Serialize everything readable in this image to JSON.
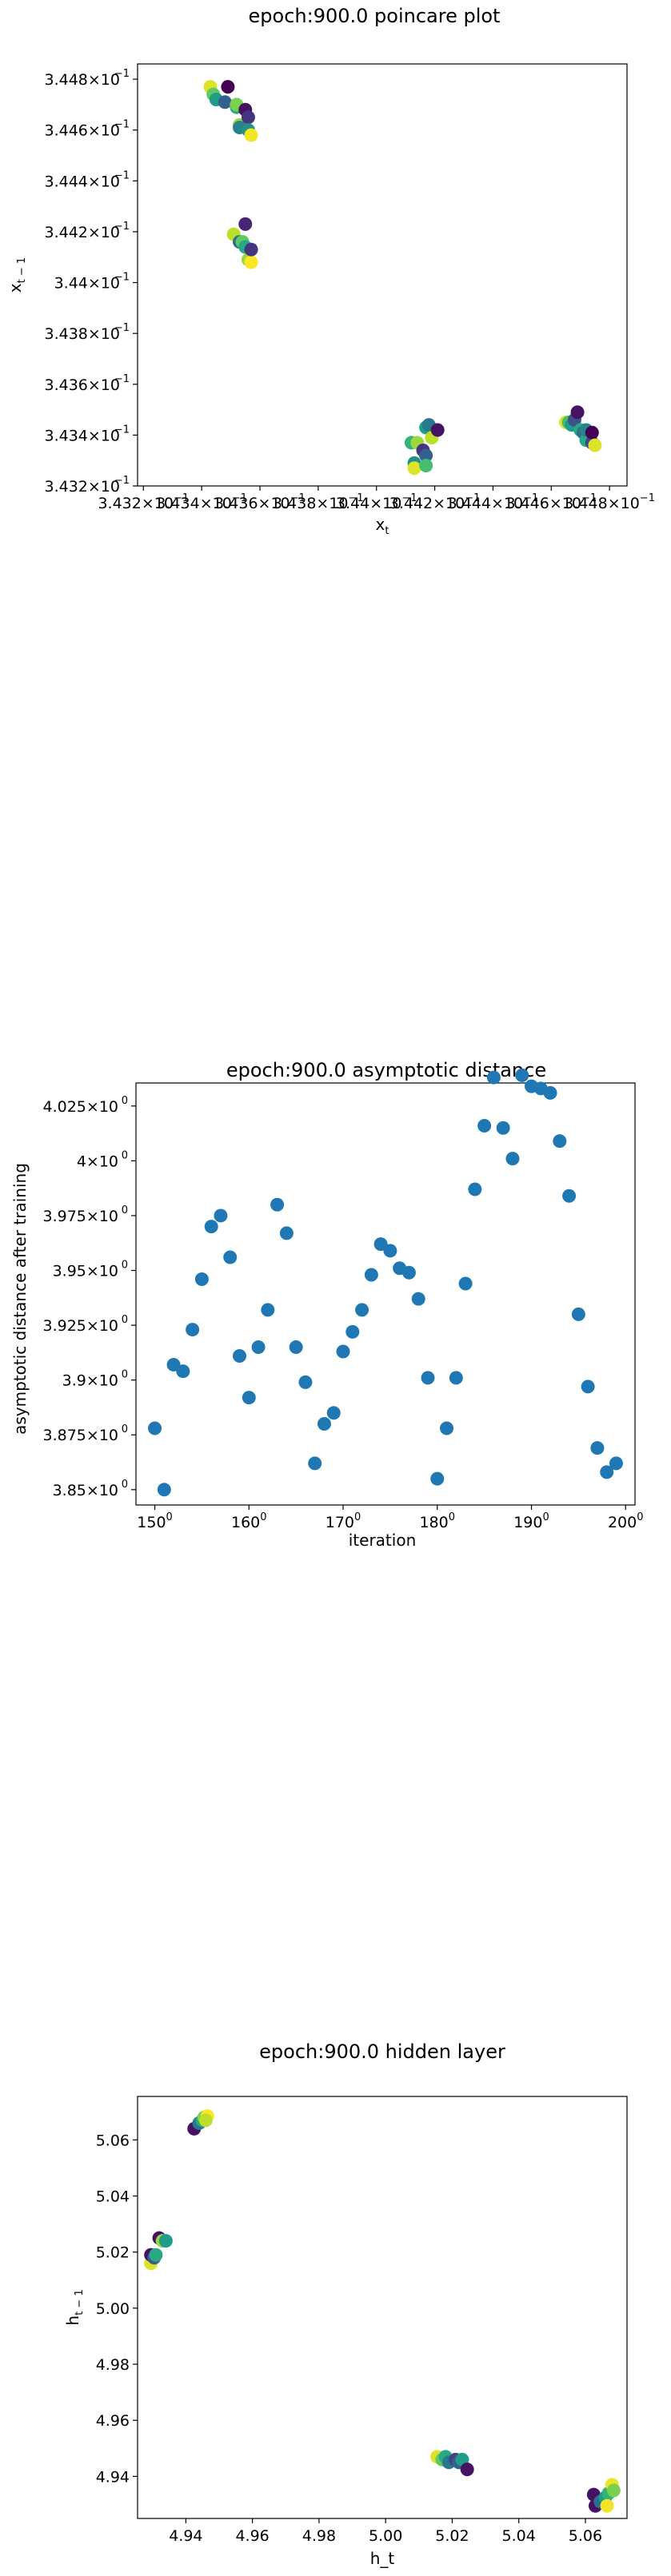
{
  "chart_data": [
    {
      "type": "scatter",
      "title": "epoch:900.0 poincare plot",
      "xlabel": "x_t",
      "ylabel": "x_{t−1}",
      "log_scale": true,
      "xlim": [
        0.34318,
        0.34486
      ],
      "ylim": [
        0.3432,
        0.34486
      ],
      "xticks": [
        {
          "value": 0.3432,
          "label": "3.432×10"
        },
        {
          "value": 0.3434,
          "label": "3.434×10"
        },
        {
          "value": 0.3436,
          "label": "3.436×10"
        },
        {
          "value": 0.3438,
          "label": "3.438×10"
        },
        {
          "value": 0.344,
          "label": "3.44×10"
        },
        {
          "value": 0.3442,
          "label": "3.442×10"
        },
        {
          "value": 0.3444,
          "label": "3.444×10"
        },
        {
          "value": 0.3446,
          "label": "3.446×10"
        },
        {
          "value": 0.3448,
          "label": "3.448×10"
        }
      ],
      "yticks": [
        {
          "value": 0.3432,
          "label": "3.432×10"
        },
        {
          "value": 0.3434,
          "label": "3.434×10"
        },
        {
          "value": 0.3436,
          "label": "3.436×10"
        },
        {
          "value": 0.3438,
          "label": "3.438×10"
        },
        {
          "value": 0.344,
          "label": "3.44×10"
        },
        {
          "value": 0.3442,
          "label": "3.442×10"
        },
        {
          "value": 0.3444,
          "label": "3.444×10"
        },
        {
          "value": 0.3446,
          "label": "3.446×10"
        },
        {
          "value": 0.3448,
          "label": "3.448×10"
        }
      ],
      "tick_exponent": "−1",
      "colormap": "viridis",
      "points": [
        {
          "x": 0.34343,
          "y": 0.34477,
          "c": 0.95
        },
        {
          "x": 0.34344,
          "y": 0.34474,
          "c": 0.75
        },
        {
          "x": 0.34345,
          "y": 0.34472,
          "c": 0.55
        },
        {
          "x": 0.34348,
          "y": 0.34471,
          "c": 0.3
        },
        {
          "x": 0.34349,
          "y": 0.34477,
          "c": 0.0
        },
        {
          "x": 0.34352,
          "y": 0.34469,
          "c": 0.6
        },
        {
          "x": 0.34352,
          "y": 0.3447,
          "c": 0.8
        },
        {
          "x": 0.34353,
          "y": 0.34462,
          "c": 0.85
        },
        {
          "x": 0.34353,
          "y": 0.34461,
          "c": 0.45
        },
        {
          "x": 0.34355,
          "y": 0.34468,
          "c": 0.05
        },
        {
          "x": 0.34356,
          "y": 0.34465,
          "c": 0.15
        },
        {
          "x": 0.34356,
          "y": 0.3446,
          "c": 0.5
        },
        {
          "x": 0.34357,
          "y": 0.34458,
          "c": 0.98
        },
        {
          "x": 0.34351,
          "y": 0.34419,
          "c": 0.9
        },
        {
          "x": 0.34353,
          "y": 0.34416,
          "c": 0.35
        },
        {
          "x": 0.34354,
          "y": 0.34416,
          "c": 0.75
        },
        {
          "x": 0.34355,
          "y": 0.34423,
          "c": 0.1
        },
        {
          "x": 0.34355,
          "y": 0.34414,
          "c": 0.6
        },
        {
          "x": 0.34356,
          "y": 0.34409,
          "c": 0.85
        },
        {
          "x": 0.34357,
          "y": 0.34408,
          "c": 1.0
        },
        {
          "x": 0.34357,
          "y": 0.34413,
          "c": 0.15
        },
        {
          "x": 0.34412,
          "y": 0.34337,
          "c": 0.65
        },
        {
          "x": 0.34413,
          "y": 0.34329,
          "c": 0.5
        },
        {
          "x": 0.34413,
          "y": 0.34327,
          "c": 0.95
        },
        {
          "x": 0.34414,
          "y": 0.34337,
          "c": 0.85
        },
        {
          "x": 0.34416,
          "y": 0.34334,
          "c": 0.15
        },
        {
          "x": 0.34417,
          "y": 0.34332,
          "c": 0.3
        },
        {
          "x": 0.34417,
          "y": 0.34328,
          "c": 0.7
        },
        {
          "x": 0.34417,
          "y": 0.34343,
          "c": 0.55
        },
        {
          "x": 0.34418,
          "y": 0.34344,
          "c": 0.4
        },
        {
          "x": 0.34419,
          "y": 0.34339,
          "c": 0.9
        },
        {
          "x": 0.34421,
          "y": 0.34342,
          "c": 0.05
        },
        {
          "x": 0.34465,
          "y": 0.34345,
          "c": 0.95
        },
        {
          "x": 0.34466,
          "y": 0.34345,
          "c": 0.7
        },
        {
          "x": 0.34467,
          "y": 0.34344,
          "c": 0.55
        },
        {
          "x": 0.34468,
          "y": 0.34346,
          "c": 0.25
        },
        {
          "x": 0.34469,
          "y": 0.34349,
          "c": 0.05
        },
        {
          "x": 0.3447,
          "y": 0.34342,
          "c": 0.6
        },
        {
          "x": 0.34471,
          "y": 0.34341,
          "c": 0.35
        },
        {
          "x": 0.34472,
          "y": 0.34338,
          "c": 0.6
        },
        {
          "x": 0.34472,
          "y": 0.34342,
          "c": 0.45
        },
        {
          "x": 0.34474,
          "y": 0.34337,
          "c": 0.2
        },
        {
          "x": 0.34474,
          "y": 0.34341,
          "c": 0.0
        },
        {
          "x": 0.34475,
          "y": 0.34336,
          "c": 0.95
        }
      ]
    },
    {
      "type": "scatter",
      "title": "epoch:900.0 asymptotic distance",
      "xlabel": "iteration",
      "ylabel": "asymptotic distance after training",
      "xlim": [
        148,
        201
      ],
      "ylim": [
        3.843,
        4.0355
      ],
      "xticks": [
        {
          "value": 150,
          "label": "150"
        },
        {
          "value": 160,
          "label": "160"
        },
        {
          "value": 170,
          "label": "170"
        },
        {
          "value": 180,
          "label": "180"
        },
        {
          "value": 190,
          "label": "190"
        },
        {
          "value": 200,
          "label": "200"
        }
      ],
      "yticks": [
        {
          "value": 3.85,
          "label": "3.85×10"
        },
        {
          "value": 3.875,
          "label": "3.875×10"
        },
        {
          "value": 3.9,
          "label": "3.9×10"
        },
        {
          "value": 3.925,
          "label": "3.925×10"
        },
        {
          "value": 3.95,
          "label": "3.95×10"
        },
        {
          "value": 3.975,
          "label": "3.975×10"
        },
        {
          "value": 4.0,
          "label": "4×10"
        },
        {
          "value": 4.025,
          "label": "4.025×10"
        }
      ],
      "tick_exponent": "0",
      "log_scale": true,
      "color": "#1f77b4",
      "x": [
        150,
        151,
        152,
        153,
        154,
        155,
        156,
        157,
        158,
        159,
        160,
        161,
        162,
        163,
        164,
        165,
        166,
        167,
        168,
        169,
        170,
        171,
        172,
        173,
        174,
        175,
        176,
        177,
        178,
        179,
        180,
        181,
        182,
        183,
        184,
        185,
        186,
        187,
        188,
        189,
        190,
        191,
        192,
        193,
        194,
        195,
        196,
        197,
        198,
        199
      ],
      "y": [
        3.878,
        3.85,
        3.907,
        3.904,
        3.923,
        3.946,
        3.97,
        3.975,
        3.956,
        3.911,
        3.892,
        3.915,
        3.932,
        3.98,
        3.967,
        3.915,
        3.899,
        3.862,
        3.88,
        3.885,
        3.913,
        3.922,
        3.932,
        3.948,
        3.962,
        3.959,
        3.951,
        3.949,
        3.937,
        3.901,
        3.855,
        3.878,
        3.901,
        3.944,
        3.987,
        4.016,
        4.038,
        4.015,
        4.001,
        4.039,
        4.034,
        4.033,
        4.031,
        4.009,
        3.984,
        3.93,
        3.897,
        3.869,
        3.858,
        3.862
      ]
    },
    {
      "type": "scatter",
      "title": "epoch:900.0 hidden layer",
      "xlabel": "h_t",
      "ylabel": "h_{t−1}",
      "xlim": [
        4.9255,
        5.0725
      ],
      "ylim": [
        4.925,
        5.0755
      ],
      "xticks": [
        {
          "value": 4.94,
          "label": "4.94"
        },
        {
          "value": 4.96,
          "label": "4.96"
        },
        {
          "value": 4.98,
          "label": "4.98"
        },
        {
          "value": 5.0,
          "label": "5.00"
        },
        {
          "value": 5.02,
          "label": "5.02"
        },
        {
          "value": 5.04,
          "label": "5.04"
        },
        {
          "value": 5.06,
          "label": "5.06"
        }
      ],
      "yticks": [
        {
          "value": 4.94,
          "label": "4.94"
        },
        {
          "value": 4.96,
          "label": "4.96"
        },
        {
          "value": 4.98,
          "label": "4.98"
        },
        {
          "value": 5.0,
          "label": "5.00"
        },
        {
          "value": 5.02,
          "label": "5.02"
        },
        {
          "value": 5.04,
          "label": "5.04"
        },
        {
          "value": 5.06,
          "label": "5.06"
        }
      ],
      "colormap": "viridis",
      "points": [
        {
          "x": 4.9425,
          "y": 5.064,
          "c": 0.05
        },
        {
          "x": 4.944,
          "y": 5.066,
          "c": 0.4
        },
        {
          "x": 4.945,
          "y": 5.067,
          "c": 0.6
        },
        {
          "x": 4.9455,
          "y": 5.068,
          "c": 0.8
        },
        {
          "x": 4.9465,
          "y": 5.0685,
          "c": 1.0
        },
        {
          "x": 4.946,
          "y": 5.067,
          "c": 0.9
        },
        {
          "x": 4.9295,
          "y": 5.016,
          "c": 0.95
        },
        {
          "x": 4.9295,
          "y": 5.019,
          "c": 0.05
        },
        {
          "x": 4.9305,
          "y": 5.018,
          "c": 0.3
        },
        {
          "x": 4.931,
          "y": 5.019,
          "c": 0.6
        },
        {
          "x": 4.932,
          "y": 5.025,
          "c": 0.05
        },
        {
          "x": 4.933,
          "y": 5.024,
          "c": 0.85
        },
        {
          "x": 4.934,
          "y": 5.024,
          "c": 0.55
        },
        {
          "x": 5.0155,
          "y": 4.947,
          "c": 0.95
        },
        {
          "x": 5.017,
          "y": 4.946,
          "c": 0.75
        },
        {
          "x": 5.018,
          "y": 4.947,
          "c": 0.6
        },
        {
          "x": 5.019,
          "y": 4.945,
          "c": 0.4
        },
        {
          "x": 5.021,
          "y": 4.946,
          "c": 0.2
        },
        {
          "x": 5.022,
          "y": 4.945,
          "c": 0.3
        },
        {
          "x": 5.023,
          "y": 4.946,
          "c": 0.55
        },
        {
          "x": 5.0245,
          "y": 4.9425,
          "c": 0.05
        },
        {
          "x": 5.0625,
          "y": 4.9335,
          "c": 0.05
        },
        {
          "x": 5.063,
          "y": 4.9295,
          "c": 0.05
        },
        {
          "x": 5.0645,
          "y": 4.931,
          "c": 0.35
        },
        {
          "x": 5.066,
          "y": 4.9325,
          "c": 0.55
        },
        {
          "x": 5.067,
          "y": 4.934,
          "c": 0.65
        },
        {
          "x": 5.0665,
          "y": 4.9295,
          "c": 0.98
        },
        {
          "x": 5.068,
          "y": 4.937,
          "c": 0.97
        },
        {
          "x": 5.0685,
          "y": 4.935,
          "c": 0.8
        }
      ]
    }
  ]
}
